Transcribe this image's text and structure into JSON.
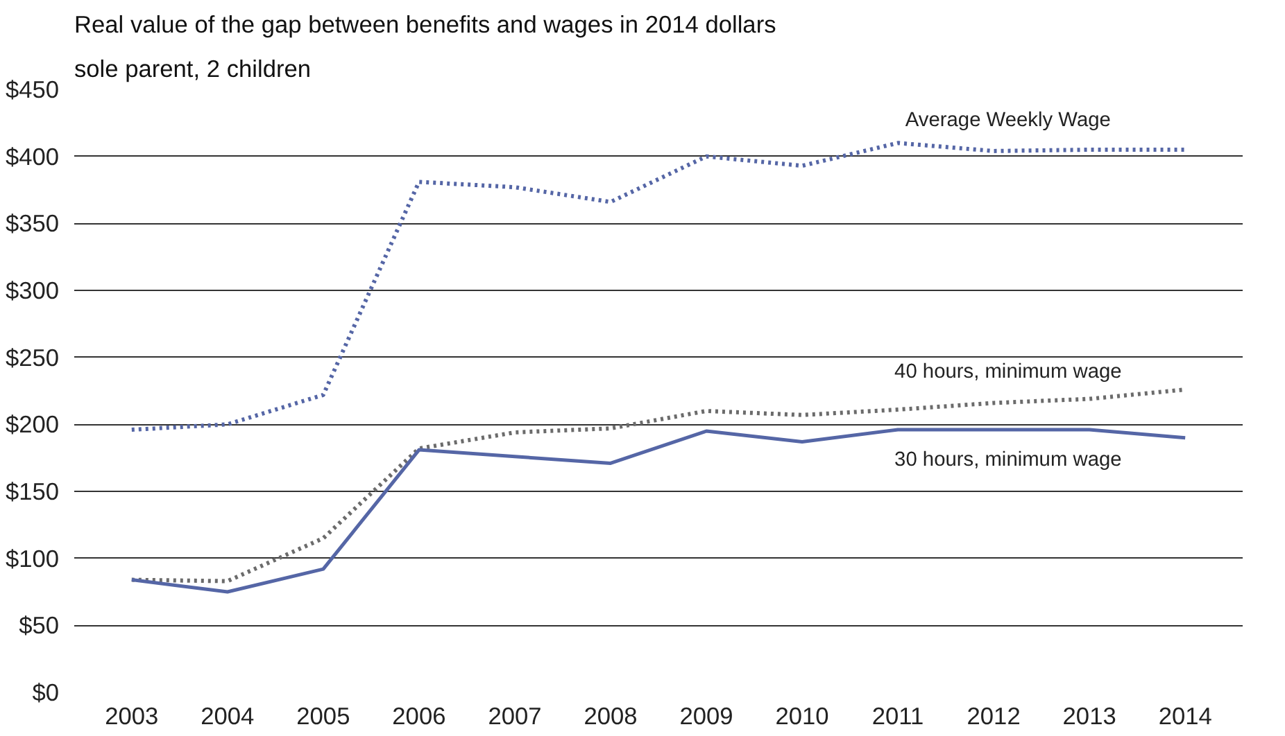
{
  "chart_data": {
    "type": "line",
    "title": "Real value of the gap between benefits and wages in 2014 dollars",
    "subtitle": "sole parent, 2 children",
    "categories": [
      "2003",
      "2004",
      "2005",
      "2006",
      "2007",
      "2008",
      "2009",
      "2010",
      "2011",
      "2012",
      "2013",
      "2014"
    ],
    "series": [
      {
        "name": "Average Weekly Wage",
        "color": "#5566a6",
        "line_style": "dotted",
        "values": [
          196,
          200,
          222,
          381,
          377,
          366,
          400,
          393,
          410,
          404,
          405,
          405
        ]
      },
      {
        "name": "40 hours, minimum wage",
        "color": "#6b6b6b",
        "line_style": "dotted",
        "values": [
          84,
          83,
          115,
          182,
          194,
          197,
          210,
          207,
          211,
          216,
          219,
          226
        ]
      },
      {
        "name": "30 hours, minimum wage",
        "color": "#5566a6",
        "line_style": "solid",
        "values": [
          84,
          75,
          92,
          181,
          176,
          171,
          195,
          187,
          196,
          196,
          196,
          190
        ]
      }
    ],
    "ylim": [
      0,
      450
    ],
    "yticks": [
      {
        "value": 0,
        "label": "$0"
      },
      {
        "value": 50,
        "label": "$50"
      },
      {
        "value": 100,
        "label": "$100"
      },
      {
        "value": 150,
        "label": "$150"
      },
      {
        "value": 200,
        "label": "$200"
      },
      {
        "value": 250,
        "label": "$250"
      },
      {
        "value": 300,
        "label": "$300"
      },
      {
        "value": 350,
        "label": "$350"
      },
      {
        "value": 400,
        "label": "$400"
      },
      {
        "value": 450,
        "label": "$450"
      }
    ],
    "grid": "y",
    "marker": "none"
  }
}
